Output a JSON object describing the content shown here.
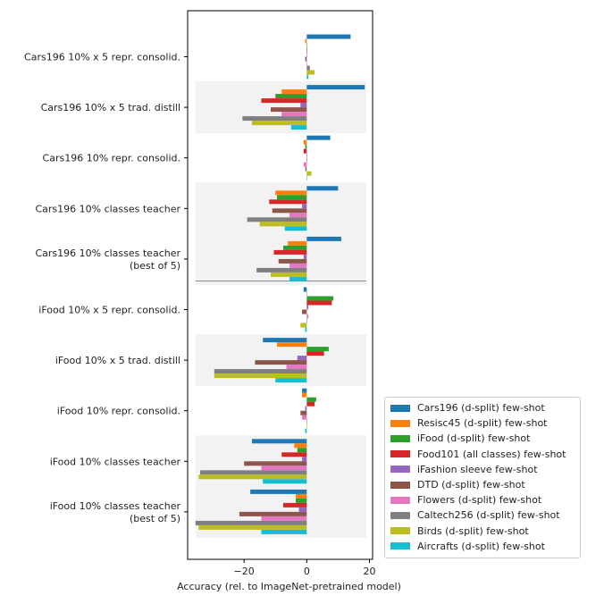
{
  "chart_data": {
    "type": "bar",
    "orientation": "horizontal",
    "xlabel": "Accuracy (rel. to ImageNet-pretrained model)",
    "xlim": [
      -38,
      21
    ],
    "xticks": [
      {
        "value": -20,
        "label": "−20"
      },
      {
        "value": 0,
        "label": "0"
      },
      {
        "value": 20,
        "label": "20"
      }
    ],
    "grid": false,
    "legend_position": "lower-right-outside",
    "categories": [
      "Cars196 10% x 5 repr. consolid.",
      "Cars196 10% x 5 trad. distill",
      "Cars196 10% repr. consolid.",
      "Cars196 10% classes teacher",
      "Cars196 10% classes teacher\n(best of 5)",
      "iFood 10% x 5 repr. consolid.",
      "iFood 10% x 5 trad. distill",
      "iFood 10% repr. consolid.",
      "iFood 10% classes teacher",
      "iFood 10% classes teacher\n(best of 5)"
    ],
    "shaded_groups": [
      1,
      3,
      4,
      6,
      8,
      9
    ],
    "separator_after_group": 4,
    "series": [
      {
        "name": "Cars196 (d-split) few-shot",
        "color": "#1f77b4",
        "values": [
          14,
          18.5,
          7.5,
          10,
          11,
          -1,
          -14,
          -1.5,
          -17.5,
          -18
        ]
      },
      {
        "name": "Resisc45 (d-split) few-shot",
        "color": "#ff7f0e",
        "values": [
          -0.5,
          -8,
          -1,
          -10,
          -6,
          0,
          -9.5,
          -1.5,
          -4,
          -3.5
        ]
      },
      {
        "name": "iFood (d-split) few-shot",
        "color": "#2ca02c",
        "values": [
          0,
          -10,
          -0.5,
          -9.5,
          -7.5,
          8.5,
          7,
          3,
          -3,
          -3.5
        ]
      },
      {
        "name": "Food101 (all classes) few-shot",
        "color": "#d62728",
        "values": [
          0,
          -14.5,
          -1,
          -12,
          -10.5,
          8,
          5.5,
          2.5,
          -8,
          -7.5
        ]
      },
      {
        "name": "iFashion sleeve few-shot",
        "color": "#9467bd",
        "values": [
          0,
          -2,
          0,
          -1.5,
          -1,
          0.5,
          -3,
          -0.5,
          -1.5,
          -2.5
        ]
      },
      {
        "name": "DTD (d-split) few-shot",
        "color": "#8c564b",
        "values": [
          -0.5,
          -11.5,
          0,
          -11,
          -9,
          -1.5,
          -16.5,
          -2,
          -20,
          -21.5
        ]
      },
      {
        "name": "Flowers (d-split) few-shot",
        "color": "#e377c2",
        "values": [
          0,
          -8,
          -1,
          -5.5,
          -5.5,
          0.5,
          -6.5,
          -1.5,
          -14.5,
          -14.5
        ]
      },
      {
        "name": "Caltech256 (d-split) few-shot",
        "color": "#7f7f7f",
        "values": [
          1,
          -20.5,
          -0.5,
          -19,
          -16,
          0,
          -29.5,
          0,
          -34,
          -35.5
        ]
      },
      {
        "name": "Birds (d-split) few-shot",
        "color": "#bcbd22",
        "values": [
          2.5,
          -17.5,
          1.5,
          -15,
          -11.5,
          -2,
          -29.5,
          0,
          -34.5,
          -34.5
        ]
      },
      {
        "name": "Aircrafts (d-split) few-shot",
        "color": "#17becf",
        "values": [
          0.5,
          -5,
          0,
          -7,
          -5.5,
          -0.5,
          -10,
          -0.5,
          -14,
          -14.5
        ]
      }
    ]
  }
}
